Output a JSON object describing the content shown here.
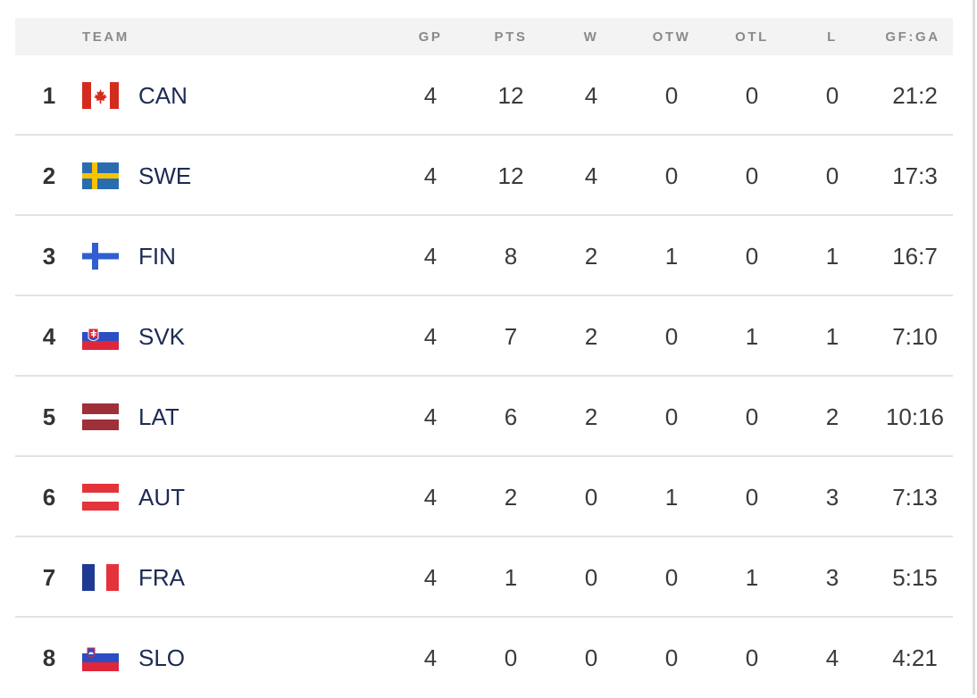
{
  "table": {
    "headers": {
      "team": "TEAM",
      "gp": "GP",
      "pts": "PTS",
      "w": "W",
      "otw": "OTW",
      "otl": "OTL",
      "l": "L",
      "gfga": "GF:GA"
    },
    "rows": [
      {
        "rank": "1",
        "team": "CAN",
        "flag": "flag-canada-icon",
        "gp": "4",
        "pts": "12",
        "w": "4",
        "otw": "0",
        "otl": "0",
        "l": "0",
        "gfga": "21:2"
      },
      {
        "rank": "2",
        "team": "SWE",
        "flag": "flag-sweden-icon",
        "gp": "4",
        "pts": "12",
        "w": "4",
        "otw": "0",
        "otl": "0",
        "l": "0",
        "gfga": "17:3"
      },
      {
        "rank": "3",
        "team": "FIN",
        "flag": "flag-finland-icon",
        "gp": "4",
        "pts": "8",
        "w": "2",
        "otw": "1",
        "otl": "0",
        "l": "1",
        "gfga": "16:7"
      },
      {
        "rank": "4",
        "team": "SVK",
        "flag": "flag-slovakia-icon",
        "gp": "4",
        "pts": "7",
        "w": "2",
        "otw": "0",
        "otl": "1",
        "l": "1",
        "gfga": "7:10"
      },
      {
        "rank": "5",
        "team": "LAT",
        "flag": "flag-latvia-icon",
        "gp": "4",
        "pts": "6",
        "w": "2",
        "otw": "0",
        "otl": "0",
        "l": "2",
        "gfga": "10:16"
      },
      {
        "rank": "6",
        "team": "AUT",
        "flag": "flag-austria-icon",
        "gp": "4",
        "pts": "2",
        "w": "0",
        "otw": "1",
        "otl": "0",
        "l": "3",
        "gfga": "7:13"
      },
      {
        "rank": "7",
        "team": "FRA",
        "flag": "flag-france-icon",
        "gp": "4",
        "pts": "1",
        "w": "0",
        "otw": "0",
        "otl": "1",
        "l": "3",
        "gfga": "5:15"
      },
      {
        "rank": "8",
        "team": "SLO",
        "flag": "flag-slovenia-icon",
        "gp": "4",
        "pts": "0",
        "w": "0",
        "otw": "0",
        "otl": "0",
        "l": "4",
        "gfga": "4:21"
      }
    ]
  },
  "colors": {
    "header_bg": "#f3f3f3",
    "header_text": "#8a8a8a",
    "team_text": "#1c2a55",
    "value_text": "#3a3a3a",
    "row_divider": "#e3e3e3"
  }
}
